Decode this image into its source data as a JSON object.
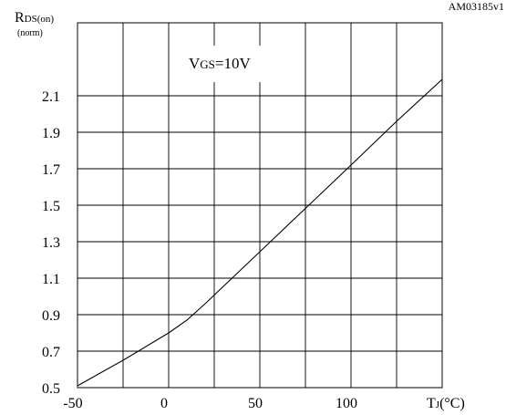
{
  "chart_data": {
    "type": "line",
    "figure_id": "AM03185v1",
    "ylabel": {
      "main": "R",
      "sub": "DS(on)",
      "unit": "(norm)"
    },
    "xlabel": {
      "main": "T",
      "sub": "J",
      "unit": "(°C)"
    },
    "annotation": {
      "main": "V",
      "sub": "GS",
      "rest": "=10V"
    },
    "xlim": [
      -50,
      100
    ],
    "ylim": [
      0.5,
      2.25
    ],
    "x_ticks": [
      {
        "value": -50,
        "label": "-50"
      },
      {
        "value": 0,
        "label": "0"
      },
      {
        "value": 50,
        "label": "50"
      },
      {
        "value": 100,
        "label": "100"
      }
    ],
    "y_ticks": [
      {
        "value": 0.5,
        "label": "0.5"
      },
      {
        "value": 0.7,
        "label": "0.7"
      },
      {
        "value": 0.9,
        "label": "0.9"
      },
      {
        "value": 1.1,
        "label": "1.1"
      },
      {
        "value": 1.3,
        "label": "1.3"
      },
      {
        "value": 1.5,
        "label": "1.5"
      },
      {
        "value": 1.7,
        "label": "1.7"
      },
      {
        "value": 1.9,
        "label": "1.9"
      },
      {
        "value": 2.1,
        "label": "2.1"
      }
    ],
    "x_grid": [
      -50,
      -25,
      0,
      25,
      50,
      75,
      100,
      125,
      150
    ],
    "grid": true,
    "series": [
      {
        "x": [
          -50,
          -25,
          0,
          10,
          20,
          40,
          60,
          80,
          100,
          125,
          150
        ],
        "y": [
          0.51,
          0.65,
          0.8,
          0.87,
          0.96,
          1.15,
          1.34,
          1.53,
          1.72,
          1.96,
          2.19
        ]
      }
    ]
  }
}
